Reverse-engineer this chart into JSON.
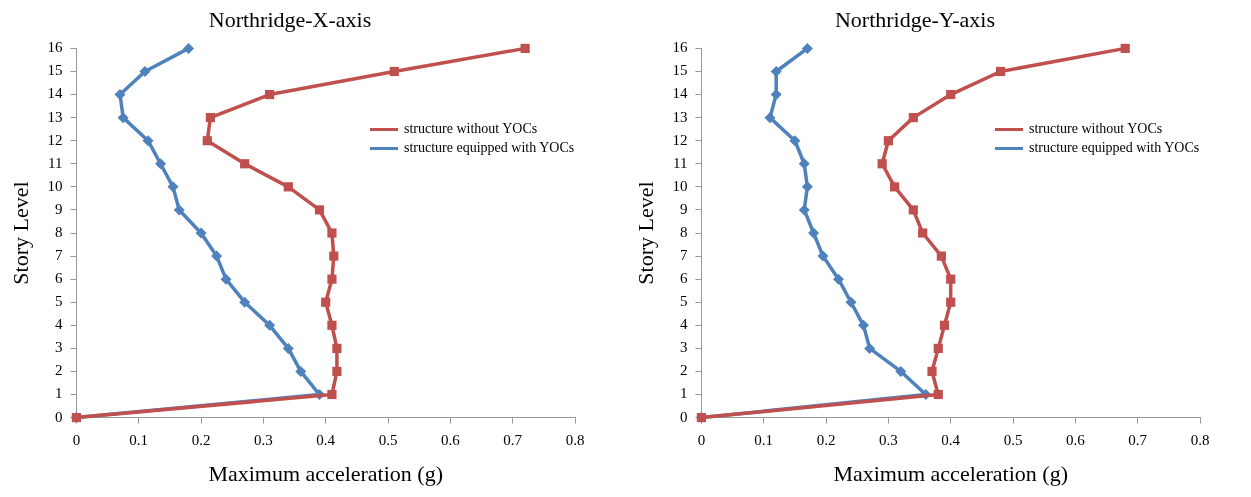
{
  "chart_data": [
    {
      "type": "line",
      "title": "Northridge-X-axis",
      "xlabel": "Maximum acceleration (g)",
      "ylabel": "Story Level",
      "xlim": [
        0,
        0.8
      ],
      "xticks": [
        0,
        0.1,
        0.2,
        0.3,
        0.4,
        0.5,
        0.6,
        0.7,
        0.8
      ],
      "ylim": [
        0,
        16
      ],
      "yticks": [
        0,
        1,
        2,
        3,
        4,
        5,
        6,
        7,
        8,
        9,
        10,
        11,
        12,
        13,
        14,
        15,
        16
      ],
      "grid": false,
      "legend": "right",
      "series": [
        {
          "name": "structure without YOCs",
          "color": "#c0504d",
          "marker": "square",
          "x": [
            0,
            0.41,
            0.418,
            0.418,
            0.41,
            0.4,
            0.41,
            0.413,
            0.41,
            0.39,
            0.34,
            0.27,
            0.21,
            0.215,
            0.31,
            0.51,
            0.72
          ],
          "values": [
            0,
            1,
            2,
            3,
            4,
            5,
            6,
            7,
            8,
            9,
            10,
            11,
            12,
            13,
            14,
            15,
            16
          ]
        },
        {
          "name": "structure equipped with YOCs",
          "color": "#4f81bd",
          "marker": "diamond",
          "x": [
            0,
            0.39,
            0.36,
            0.34,
            0.31,
            0.27,
            0.24,
            0.225,
            0.2,
            0.165,
            0.155,
            0.135,
            0.115,
            0.075,
            0.07,
            0.11,
            0.18
          ],
          "values": [
            0,
            1,
            2,
            3,
            4,
            5,
            6,
            7,
            8,
            9,
            10,
            11,
            12,
            13,
            14,
            15,
            16
          ]
        }
      ]
    },
    {
      "type": "line",
      "title": "Northridge-Y-axis",
      "xlabel": "Maximum acceleration (g)",
      "ylabel": "Story Level",
      "xlim": [
        0,
        0.8
      ],
      "xticks": [
        0,
        0.1,
        0.2,
        0.3,
        0.4,
        0.5,
        0.6,
        0.7,
        0.8
      ],
      "ylim": [
        0,
        16
      ],
      "yticks": [
        0,
        1,
        2,
        3,
        4,
        5,
        6,
        7,
        8,
        9,
        10,
        11,
        12,
        13,
        14,
        15,
        16
      ],
      "grid": false,
      "legend": "right",
      "series": [
        {
          "name": "structure without YOCs",
          "color": "#c0504d",
          "marker": "square",
          "x": [
            0,
            0.38,
            0.37,
            0.38,
            0.39,
            0.4,
            0.4,
            0.385,
            0.355,
            0.34,
            0.31,
            0.29,
            0.3,
            0.34,
            0.4,
            0.48,
            0.68
          ],
          "values": [
            0,
            1,
            2,
            3,
            4,
            5,
            6,
            7,
            8,
            9,
            10,
            11,
            12,
            13,
            14,
            15,
            16
          ]
        },
        {
          "name": "structure equipped with YOCs",
          "color": "#4f81bd",
          "marker": "diamond",
          "x": [
            0,
            0.36,
            0.32,
            0.27,
            0.26,
            0.24,
            0.22,
            0.195,
            0.18,
            0.165,
            0.17,
            0.165,
            0.15,
            0.11,
            0.12,
            0.12,
            0.17
          ],
          "values": [
            0,
            1,
            2,
            3,
            4,
            5,
            6,
            7,
            8,
            9,
            10,
            11,
            12,
            13,
            14,
            15,
            16
          ]
        }
      ]
    }
  ]
}
